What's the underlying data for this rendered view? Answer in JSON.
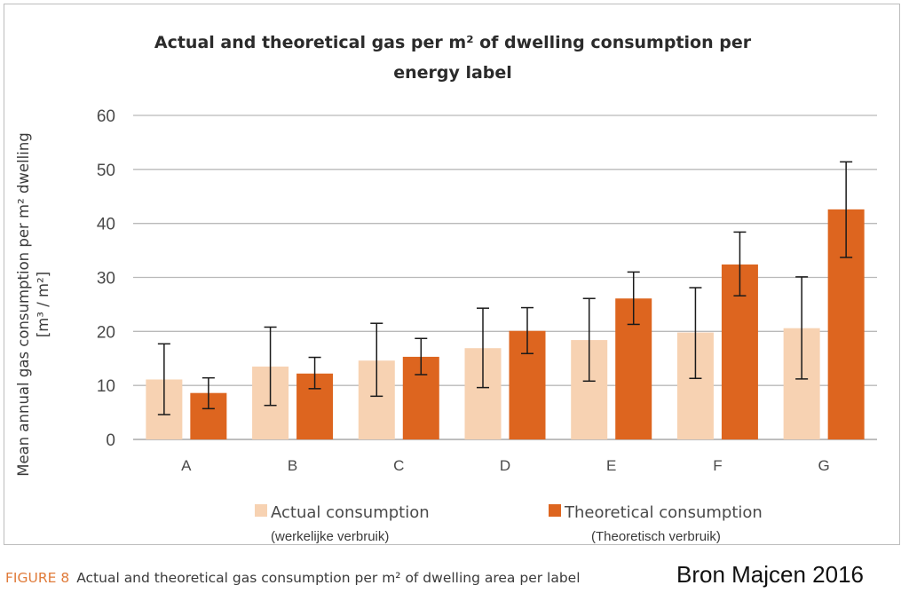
{
  "chart_data": {
    "type": "bar",
    "title_lines": [
      "Actual and theoretical gas per m² of dwelling consumption per",
      "energy label"
    ],
    "ylabel_lines": [
      "Mean annual gas consumption per m² dwelling",
      "[m³ / m²]"
    ],
    "xlabel": "",
    "categories": [
      "A",
      "B",
      "C",
      "D",
      "E",
      "F",
      "G"
    ],
    "ylim": [
      0,
      60
    ],
    "yticks": [
      "0",
      "10",
      "20",
      "30",
      "40",
      "50",
      "60"
    ],
    "grid": true,
    "legend_position": "bottom",
    "series": [
      {
        "name": "Actual consumption",
        "subname": "(werkelijke verbruik)",
        "color": "#f7d2b2",
        "values": [
          11.1,
          13.5,
          14.6,
          16.9,
          18.4,
          19.8,
          20.6
        ],
        "error_low": [
          4.6,
          6.3,
          8.0,
          9.6,
          10.8,
          11.3,
          11.2
        ],
        "error_high": [
          17.7,
          20.8,
          21.5,
          24.3,
          26.1,
          28.1,
          30.1
        ]
      },
      {
        "name": "Theoretical consumption",
        "subname": "(Theoretisch verbruik)",
        "color": "#dd651f",
        "values": [
          8.6,
          12.2,
          15.3,
          20.1,
          26.1,
          32.4,
          42.6
        ],
        "error_low": [
          5.7,
          9.4,
          12.0,
          15.9,
          21.3,
          26.6,
          33.7
        ],
        "error_high": [
          11.4,
          15.2,
          18.7,
          24.4,
          31.0,
          38.4,
          51.4
        ]
      }
    ]
  },
  "caption": {
    "figure_label": "FIGURE 8",
    "text": "Actual and theoretical gas consumption per m² of dwelling area per label"
  },
  "source": "Bron Majcen 2016"
}
